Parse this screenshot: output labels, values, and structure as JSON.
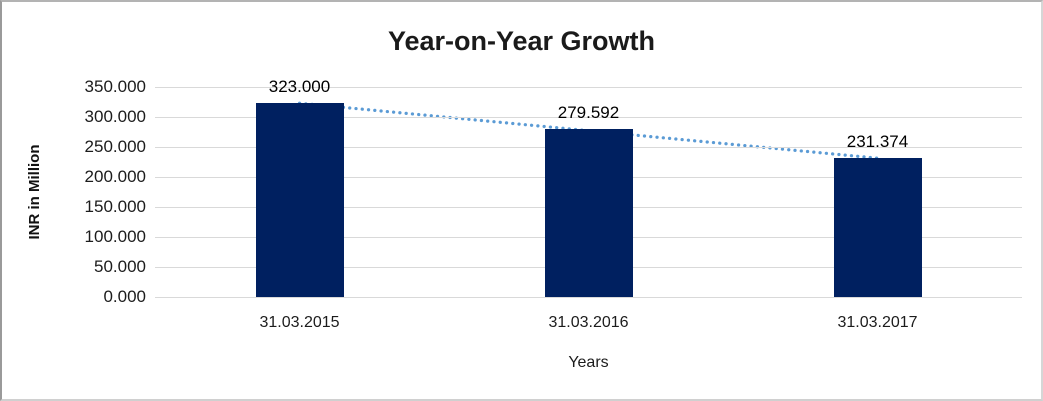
{
  "chart": {
    "title": "Year-on-Year Growth",
    "y_axis_title": "INR in Million",
    "x_axis_title": "Years"
  },
  "chart_data": {
    "type": "bar",
    "title": "Year-on-Year Growth",
    "xlabel": "Years",
    "ylabel": "INR in Million",
    "categories": [
      "31.03.2015",
      "31.03.2016",
      "31.03.2017"
    ],
    "values": [
      323.0,
      279.592,
      231.374
    ],
    "data_labels": [
      "323.000",
      "279.592",
      "231.374"
    ],
    "ylim": [
      0,
      350
    ],
    "yticks": [
      0,
      50,
      100,
      150,
      200,
      250,
      300,
      350
    ],
    "ytick_labels": [
      "0.000",
      "50.000",
      "100.000",
      "150.000",
      "200.000",
      "250.000",
      "300.000",
      "350.000"
    ],
    "grid": "horizontal-only",
    "legend": "none",
    "bar_color": "#002060",
    "gridline_color": "#D9D9D9",
    "trendline": {
      "type": "linear",
      "style": "dotted",
      "color": "#5B9BD5",
      "from_category": "31.03.2015",
      "to_category": "31.03.2017"
    }
  }
}
